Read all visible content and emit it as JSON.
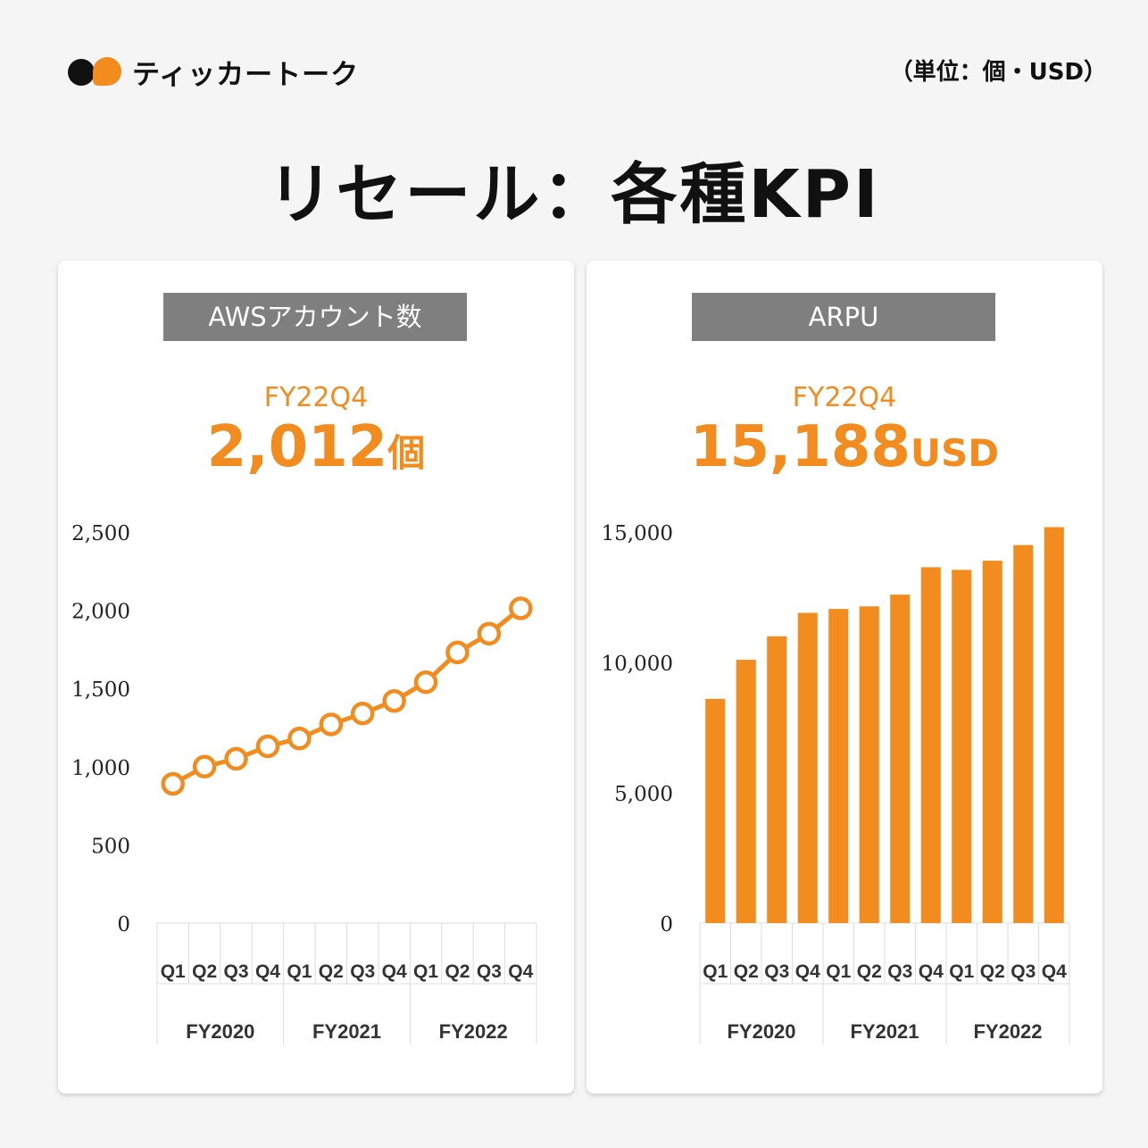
{
  "brand": {
    "name": "ティッカートーク"
  },
  "unit_note": "（単位：個・USD）",
  "title": "リセール：各種KPI",
  "colors": {
    "accent": "#f28c1e",
    "header_bg": "#7f7f7f"
  },
  "panels": [
    {
      "header": "AWSアカウント数",
      "period": "FY22Q4",
      "value": "2,012",
      "unit": "個"
    },
    {
      "header": "ARPU",
      "period": "FY22Q4",
      "value": "15,188",
      "unit": "USD"
    }
  ],
  "chart_data": [
    {
      "type": "line",
      "categories": [
        "Q1",
        "Q2",
        "Q3",
        "Q4",
        "Q1",
        "Q2",
        "Q3",
        "Q4",
        "Q1",
        "Q2",
        "Q3",
        "Q4"
      ],
      "groups": [
        "FY2020",
        "FY2021",
        "FY2022"
      ],
      "values": [
        890,
        1000,
        1050,
        1130,
        1180,
        1270,
        1340,
        1420,
        1540,
        1730,
        1850,
        2012
      ],
      "ylim": [
        0,
        2500
      ],
      "yticks": [
        "0",
        "500",
        "1,000",
        "1,500",
        "2,000",
        "2,500"
      ],
      "grid": false
    },
    {
      "type": "bar",
      "categories": [
        "Q1",
        "Q2",
        "Q3",
        "Q4",
        "Q1",
        "Q2",
        "Q3",
        "Q4",
        "Q1",
        "Q2",
        "Q3",
        "Q4"
      ],
      "groups": [
        "FY2020",
        "FY2021",
        "FY2022"
      ],
      "values": [
        8600,
        10100,
        11000,
        11900,
        12050,
        12150,
        12600,
        13650,
        13550,
        13900,
        14500,
        15188
      ],
      "ylim": [
        0,
        15000
      ],
      "yticks": [
        "0",
        "5,000",
        "10,000",
        "15,000"
      ],
      "grid": false
    }
  ]
}
